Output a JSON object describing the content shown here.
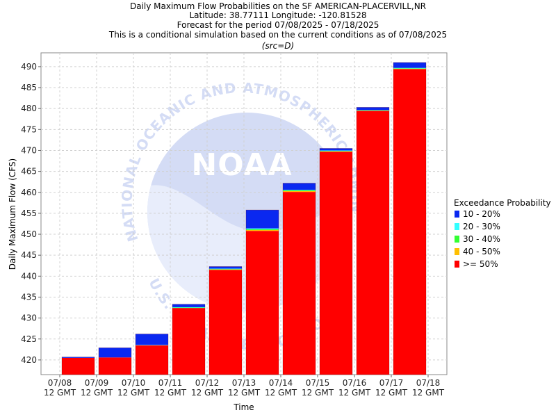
{
  "title_lines": [
    "Daily Maximum Flow Probabilities on the SF AMERICAN-PLACERVILL,NR",
    "Latitude: 38.77111 Longitude: -120.81528",
    "Forecast for the period 07/08/2025 - 07/18/2025",
    "This is a conditional simulation based on the current conditions as of 07/08/2025",
    "(src=D)"
  ],
  "watermark": {
    "text_top": "NATIONAL OCEANIC AND ATMOSPHERIC ADMINISTRATION",
    "text_bottom": "U.S. DEPARTMENT OF COMMERCE",
    "center": "NOAA"
  },
  "chart_data": {
    "type": "bar",
    "title": "Daily Maximum Flow Probabilities on the SF AMERICAN-PLACERVILL,NR",
    "xlabel": "Time",
    "ylabel": "Daily Maximum Flow (CFS)",
    "ylim": [
      416.5,
      493.3
    ],
    "yticks": [
      420,
      425,
      430,
      435,
      440,
      445,
      450,
      455,
      460,
      465,
      470,
      475,
      480,
      485,
      490
    ],
    "xticks": [
      [
        "07/08",
        "12 GMT"
      ],
      [
        "07/09",
        "12 GMT"
      ],
      [
        "07/10",
        "12 GMT"
      ],
      [
        "07/11",
        "12 GMT"
      ],
      [
        "07/12",
        "12 GMT"
      ],
      [
        "07/13",
        "12 GMT"
      ],
      [
        "07/14",
        "12 GMT"
      ],
      [
        "07/15",
        "12 GMT"
      ],
      [
        "07/16",
        "12 GMT"
      ],
      [
        "07/17",
        "12 GMT"
      ],
      [
        "07/18",
        "12 GMT"
      ]
    ],
    "grid": true,
    "legend": {
      "title": "Exceedance Probability",
      "placement": "right",
      "entries": [
        {
          "label": "10 - 20%",
          "color": "#0a28f0"
        },
        {
          "label": "20 - 30%",
          "color": "#33ffff"
        },
        {
          "label": "30 - 40%",
          "color": "#33ff33"
        },
        {
          "label": "40 - 50%",
          "color": "#ffbf00"
        },
        {
          "label": ">= 50%",
          "color": "#ff0000"
        }
      ]
    },
    "bars": [
      {
        "p50": 420.5,
        "p40": 420.5,
        "p30": 420.5,
        "p20": 420.5,
        "p10": 420.7
      },
      {
        "p50": 420.6,
        "p40": 420.6,
        "p30": 420.6,
        "p20": 420.6,
        "p10": 422.9
      },
      {
        "p50": 423.5,
        "p40": 423.5,
        "p30": 423.5,
        "p20": 423.6,
        "p10": 426.2
      },
      {
        "p50": 432.4,
        "p40": 432.4,
        "p30": 432.5,
        "p20": 432.6,
        "p10": 433.3
      },
      {
        "p50": 441.5,
        "p40": 441.6,
        "p30": 441.7,
        "p20": 441.8,
        "p10": 442.3
      },
      {
        "p50": 450.8,
        "p40": 451.0,
        "p30": 451.2,
        "p20": 451.4,
        "p10": 455.8
      },
      {
        "p50": 460.1,
        "p40": 460.3,
        "p30": 460.5,
        "p20": 460.6,
        "p10": 462.2
      },
      {
        "p50": 469.7,
        "p40": 469.8,
        "p30": 469.9,
        "p20": 470.0,
        "p10": 470.5
      },
      {
        "p50": 479.4,
        "p40": 479.5,
        "p30": 479.6,
        "p20": 479.6,
        "p10": 480.3
      },
      {
        "p50": 489.4,
        "p40": 489.5,
        "p30": 489.6,
        "p20": 489.7,
        "p10": 491.0
      }
    ]
  }
}
